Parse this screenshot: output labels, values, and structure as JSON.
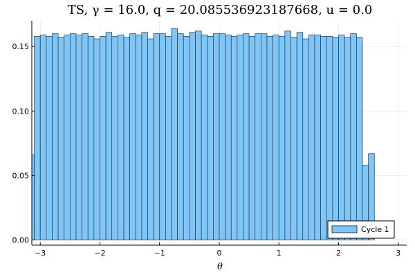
{
  "chart_data": {
    "type": "bar",
    "title": "TS, γ = 16.0, q = 20.085536923187668, u = 0.0",
    "xlabel": "θ",
    "ylabel": "",
    "xlim": [
      -3.1416,
      3.1416
    ],
    "ylim": [
      -0.004,
      0.17
    ],
    "bin_width": 0.1,
    "x_ticks": [
      -3,
      -2,
      -1,
      0,
      1,
      2,
      3
    ],
    "x_tick_labels": [
      "−3",
      "−2",
      "−1",
      "0",
      "1",
      "2",
      "3"
    ],
    "y_ticks": [
      0.0,
      0.05,
      0.1,
      0.15
    ],
    "y_tick_labels": [
      "0.00",
      "0.05",
      "0.10",
      "0.15"
    ],
    "grid": true,
    "legend_position": "bottom-right",
    "series": [
      {
        "name": "Cycle 1",
        "color": "#7fc6f7",
        "edge_color": "#1e3a52",
        "bin_edges_start": -3.2,
        "values": [
          0.066,
          0.158,
          0.159,
          0.158,
          0.16,
          0.157,
          0.159,
          0.16,
          0.159,
          0.16,
          0.158,
          0.156,
          0.158,
          0.161,
          0.158,
          0.159,
          0.157,
          0.16,
          0.159,
          0.161,
          0.156,
          0.16,
          0.16,
          0.158,
          0.164,
          0.16,
          0.158,
          0.161,
          0.162,
          0.159,
          0.158,
          0.16,
          0.16,
          0.159,
          0.158,
          0.159,
          0.16,
          0.158,
          0.16,
          0.16,
          0.158,
          0.159,
          0.158,
          0.162,
          0.157,
          0.161,
          0.156,
          0.159,
          0.159,
          0.158,
          0.158,
          0.157,
          0.159,
          0.157,
          0.16,
          0.157,
          0.058,
          0.067
        ]
      }
    ]
  }
}
